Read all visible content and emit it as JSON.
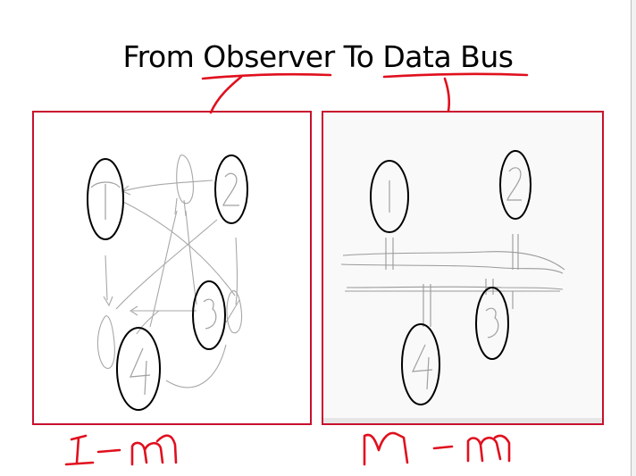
{
  "slide": {
    "title": "From Observer To Data Bus",
    "ink_color": "#e0101e",
    "frame_color": "#c8102e"
  },
  "left_panel": {
    "caption": "1-m",
    "nodes": [
      "1",
      "2",
      "3",
      "4"
    ]
  },
  "right_panel": {
    "caption": "m-m",
    "nodes": [
      "1",
      "2",
      "3",
      "4"
    ]
  }
}
